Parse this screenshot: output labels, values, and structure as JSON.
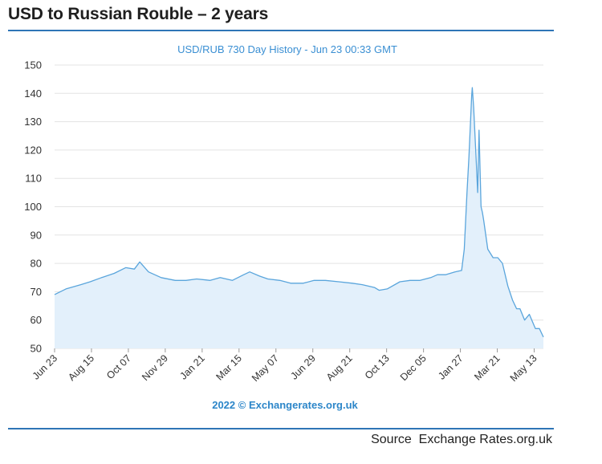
{
  "page": {
    "title": "USD to Russian Rouble – 2 years",
    "source": "Source  Exchange Rates.org.uk"
  },
  "chart_data": {
    "type": "area",
    "title": "USD/RUB 730 Day History - Jun 23 00:33 GMT",
    "credit": "2022 © Exchangerates.org.uk",
    "xlabel": "",
    "ylabel": "",
    "ylim": [
      50,
      150
    ],
    "yticks": [
      50,
      60,
      70,
      80,
      90,
      100,
      110,
      120,
      130,
      140,
      150
    ],
    "x_tick_labels": [
      "Jun 23",
      "Aug 15",
      "Oct 07",
      "Nov 29",
      "Jan 21",
      "Mar 15",
      "May 07",
      "Jun 29",
      "Aug 21",
      "Oct 13",
      "Dec 05",
      "Jan 27",
      "Mar 21",
      "May 13"
    ],
    "grid": "horizontal",
    "colors": {
      "line": "#5aa5dc",
      "fill": "#e3f0fb"
    },
    "series": [
      {
        "x": [
          "2020-06-23",
          "2020-07-10",
          "2020-08-01",
          "2020-08-15",
          "2020-09-01",
          "2020-09-20",
          "2020-10-07",
          "2020-10-20",
          "2020-10-28",
          "2020-11-10",
          "2020-11-29",
          "2020-12-20",
          "2021-01-05",
          "2021-01-21",
          "2021-02-10",
          "2021-02-25",
          "2021-03-15",
          "2021-04-01",
          "2021-04-10",
          "2021-04-25",
          "2021-05-07",
          "2021-05-25",
          "2021-06-10",
          "2021-06-29",
          "2021-07-15",
          "2021-08-01",
          "2021-08-21",
          "2021-09-10",
          "2021-09-25",
          "2021-10-13",
          "2021-10-20",
          "2021-11-01",
          "2021-11-20",
          "2021-12-05",
          "2021-12-20",
          "2022-01-05",
          "2022-01-15",
          "2022-01-27",
          "2022-02-10",
          "2022-02-20",
          "2022-02-24",
          "2022-02-28",
          "2022-03-03",
          "2022-03-07",
          "2022-03-08",
          "2022-03-10",
          "2022-03-14",
          "2022-03-16",
          "2022-03-18",
          "2022-03-21",
          "2022-03-23",
          "2022-03-25",
          "2022-03-31",
          "2022-04-08",
          "2022-04-15",
          "2022-04-22",
          "2022-04-30",
          "2022-05-07",
          "2022-05-13",
          "2022-05-18",
          "2022-05-25",
          "2022-06-01",
          "2022-06-10",
          "2022-06-16",
          "2022-06-22"
        ],
        "values": [
          69,
          71,
          72.5,
          73.5,
          75,
          76.5,
          78.5,
          78,
          80.5,
          77,
          75,
          74,
          74,
          74.5,
          74,
          75,
          74,
          76,
          77,
          75.5,
          74.5,
          74,
          73,
          73,
          74,
          74,
          73.5,
          73,
          72.5,
          71.5,
          70.5,
          71,
          73.5,
          74,
          74,
          75,
          76,
          76,
          77,
          77.5,
          85,
          105,
          118,
          139,
          142,
          135,
          115,
          105,
          127,
          100,
          98,
          95,
          85,
          82,
          82,
          80,
          72,
          67,
          64,
          64,
          60,
          62,
          57,
          57,
          54
        ]
      }
    ]
  }
}
